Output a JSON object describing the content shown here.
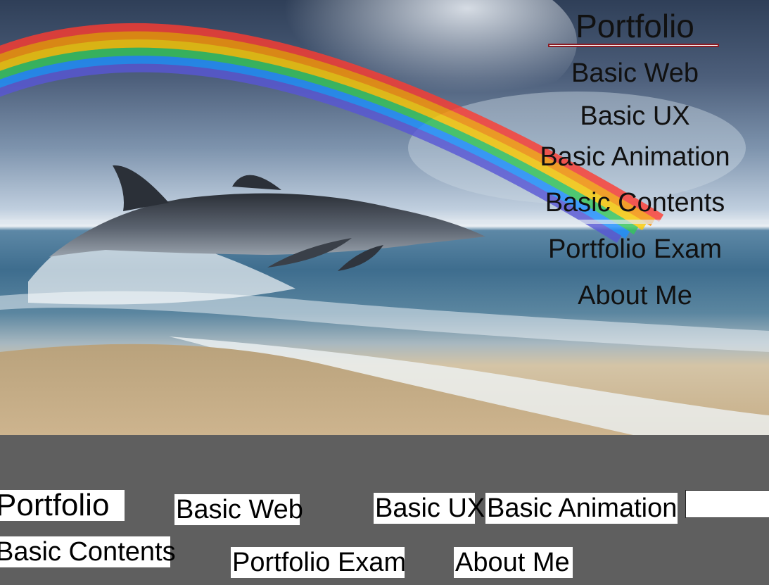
{
  "nav": {
    "title": "Portfolio",
    "items": [
      {
        "label": "Basic Web"
      },
      {
        "label": "Basic UX"
      },
      {
        "label": "Basic Animation"
      },
      {
        "label": "Basic Contents"
      },
      {
        "label": "Portfolio Exam"
      },
      {
        "label": "About Me"
      }
    ]
  },
  "footer": {
    "title": "Portfolio",
    "items": [
      {
        "label": "Basic Web"
      },
      {
        "label": "Basic UX"
      },
      {
        "label": "Basic Animation"
      },
      {
        "label": "Basic Contents"
      },
      {
        "label": "Portfolio Exam"
      },
      {
        "label": "About Me"
      }
    ]
  },
  "colors": {
    "nav_underline_border": "#8b1c24",
    "footer_background": "#5f5f5f",
    "text": "#111111"
  }
}
